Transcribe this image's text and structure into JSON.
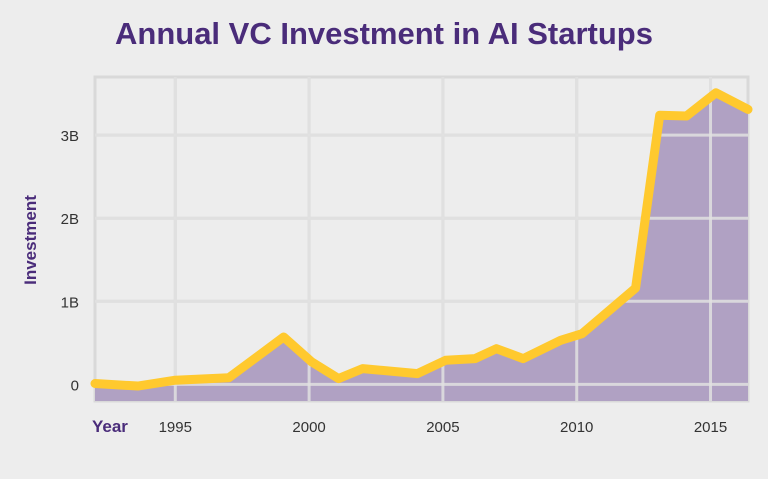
{
  "chart_data": {
    "type": "area",
    "title": "Annual VC Investment in AI Startups",
    "xlabel": "Year",
    "ylabel": "Investment",
    "x_ticks": [
      1995,
      2000,
      2005,
      2010,
      2015
    ],
    "y_ticks": [
      {
        "value": 0,
        "label": "0"
      },
      {
        "value": 1,
        "label": "1B"
      },
      {
        "value": 2,
        "label": "2B"
      },
      {
        "value": 3,
        "label": "3B"
      }
    ],
    "xlim": [
      1992,
      2016.4
    ],
    "ylim": [
      -0.2,
      3.7
    ],
    "grid": true,
    "x": [
      1992,
      1993.6,
      1995,
      1997,
      1999.05,
      2000.1,
      2001.1,
      2002,
      2004.05,
      2005.1,
      2006.2,
      2007,
      2008,
      2009.4,
      2010.2,
      2012.2,
      2013.1,
      2014.1,
      2015.2,
      2016.4
    ],
    "values": [
      0.01,
      -0.02,
      0.05,
      0.08,
      0.57,
      0.27,
      0.07,
      0.19,
      0.13,
      0.29,
      0.31,
      0.43,
      0.31,
      0.53,
      0.61,
      1.16,
      3.24,
      3.23,
      3.51,
      3.31
    ],
    "colors": {
      "line": "#ffc92e",
      "fill": "#b0a1c3",
      "grid": "#d9d9d9",
      "title": "#4a2c7a",
      "background": "#ededed"
    }
  }
}
